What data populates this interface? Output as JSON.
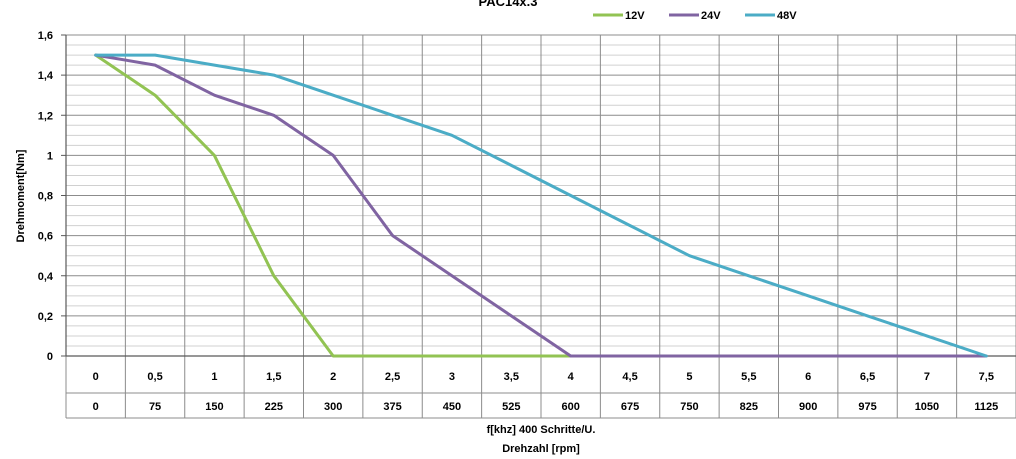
{
  "chart_data": {
    "type": "line",
    "title": "PAC14x.3",
    "ylabel": "Drehmoment[Nm]",
    "xlabel": "f[khz] 400 Schritte/U.",
    "xlabel2": "Drehzahl [rpm]",
    "ylim": [
      0,
      1.6
    ],
    "yticks": [
      "0",
      "0,2",
      "0,4",
      "0,6",
      "0,8",
      "1",
      "1,2",
      "1,4",
      "1,6"
    ],
    "categories": [
      "0",
      "0,5",
      "1",
      "1,5",
      "2",
      "2,5",
      "3",
      "3,5",
      "4",
      "4,5",
      "5",
      "5,5",
      "6",
      "6,5",
      "7",
      "7,5"
    ],
    "categories_rpm": [
      "0",
      "75",
      "150",
      "225",
      "300",
      "375",
      "450",
      "525",
      "600",
      "675",
      "750",
      "825",
      "900",
      "975",
      "1050",
      "1125"
    ],
    "legend_position": "top",
    "grid": true,
    "series": [
      {
        "name": "12V",
        "color": "#92C353",
        "values": [
          1.5,
          1.3,
          1.0,
          0.4,
          0,
          0,
          0,
          0,
          0,
          null,
          null,
          null,
          null,
          null,
          null,
          null
        ]
      },
      {
        "name": "24V",
        "color": "#8064A2",
        "values": [
          1.5,
          1.45,
          1.3,
          1.2,
          1.0,
          0.6,
          0.4,
          0.2,
          0,
          0,
          0,
          0,
          0,
          0,
          0,
          0
        ]
      },
      {
        "name": "48V",
        "color": "#4BACC6",
        "values": [
          1.5,
          1.5,
          1.45,
          1.4,
          1.3,
          1.2,
          1.1,
          0.95,
          0.8,
          0.65,
          0.5,
          0.4,
          0.3,
          0.2,
          0.1,
          0
        ]
      }
    ]
  }
}
